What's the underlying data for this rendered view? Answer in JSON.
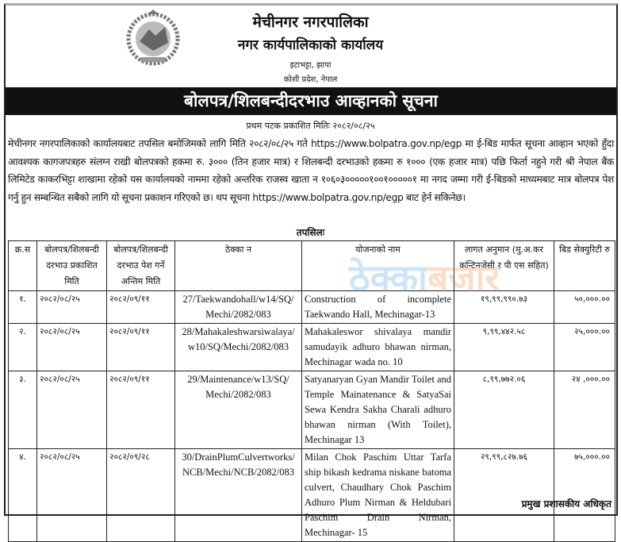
{
  "header": {
    "municipality": "मेचीनगर नगरपालिका",
    "office": "नगर कार्यपालिकाको कार्यालय",
    "address_line1": "इटाभट्टा, झापा",
    "address_line2": "कोशी प्रदेश, नेपाल",
    "emblem_icon": "nepal-government-emblem"
  },
  "title": "बोलपत्र/शिलबन्दीदरभाउ आव्हानको सूचना",
  "published_date": "प्रथम पटक प्रकाशित मितिः २०८२/०८/२५",
  "body_text": "मेचीनगर नगरपालिकाको कार्यालयबाट तपसिल बमोजिमको लागि  मिति २०८२/०८/२५ गते https://www.bolpatra.gov.np/egp मा ई-बिड मार्फत सूचना आव्हान भएको हुँदा आवश्यक कागजपत्रहरु संलग्न राखी बोलपत्रको हकमा रु. ३००० (तिन हजार मात्र) र शिलबन्दी दरभाउको हकमा रु १००० (एक हजार मात्र) पछि फिर्ता नहुने गरी श्री नेपाल बैंक लिमिटेड काकरभिट्टा शाखामा रहेको यस कार्यालयको नाममा रहेको अन्तरिक राजस्व खाता न १०६०३०००००१००१०००००१ मा नगद जम्मा गरी ई-बिडको माध्यमबाट मात्र बोलपत्र पेश गर्नु हुन सम्बन्धित सबैको लागि यो सूचना प्रकाशन गरिएको छ। थप सूचना https://www.bolpatra.gov.np/egp बाट हेर्न सकिनेछ।",
  "table_caption": "तपसिलः",
  "table": {
    "headers": [
      "क्र.स",
      "बोलपत्र/शिलबन्दी दरभाउ प्रकाशित मिति",
      "बोलपत्र/शिलबन्दी दरभाउ पेश गर्ने अन्तिम मिति",
      "ठेक्का न",
      "योजनाको नाम",
      "लागत अनुमान (मु.अ.कर कन्टिनजेंसी र पी एस सहित)",
      "बिड सेक्युरिटी रु"
    ],
    "rows": [
      [
        "१.",
        "२०८२/०८/२५",
        "२०८२/०९/११",
        "27/Taekwandohall/w14/SQ/ Mechi/2082/083",
        "Construction of incomplete Taekwando Hall, Mechinagar-13",
        "१९,९९,९९०.७३",
        "५०,०००.००"
      ],
      [
        "२.",
        "२०८२/०८/२५",
        "२०८२/०९/११",
        "28/Mahakaleshwarsiwalaya/ w10/SQ/Mechi/2082/083",
        "Mahakaleswor shivalaya mandir samudayik adhuro bhawan nirman, Mechinagar wada no. 10",
        "९,९९,४४२.५८",
        "२५,०००.००"
      ],
      [
        "३.",
        "२०८२/०८/२५",
        "२०८२/०९/११",
        "29/Maintenance/w13/SQ/ Mechi/2082/083",
        "Satyanaryan Gyan Mandir Toilet and Temple Mainatenance & SatyaSai Sewa Kendra Sakha Charali adhuro bhawan nirman (With Toilet), Mechinagar 13",
        "८,९९,७७२.०६",
        "२४ ,०००.००"
      ],
      [
        "४.",
        "२०८२/०८/२५",
        "२०८२/०९/२८",
        "30/DrainPlumCulvertworks/ NCB/Mechi/NCB/2082/083",
        "Milan Chok Paschim Uttar Tarfa ship bikash kedrama niskane batoma culvert, Chaudhary Chok Paschim Adhuro Plum Nirman & Heldubari Paschim Drain Nirman, Mechinagar- 15",
        "२९,९९,८२७.७६",
        "७५,०००.००"
      ]
    ]
  },
  "watermark": {
    "part1": "ठेक्का",
    "part2": "बजार",
    "color1": "#4aa3df",
    "color2": "#f08a4b"
  },
  "signature": "प्रमुख प्रशासकीय अधिकृत"
}
